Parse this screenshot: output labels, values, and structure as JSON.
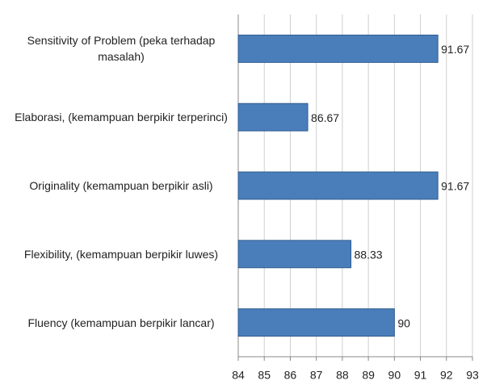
{
  "chart_data": {
    "type": "bar",
    "orientation": "horizontal",
    "categories": [
      "Sensitivity of Problem (peka terhadap masalah)",
      "Elaborasi, (kemampuan berpikir terperinci)",
      "Originality (kemampuan berpikir asli)",
      "Flexibility, (kemampuan berpikir luwes)",
      "Fluency (kemampuan berpikir lancar)"
    ],
    "values": [
      91.67,
      86.67,
      91.67,
      88.33,
      90
    ],
    "color": "#4a7ebb",
    "xlim": [
      84,
      93
    ],
    "xticks": [
      84,
      85,
      86,
      87,
      88,
      89,
      90,
      91,
      92,
      93
    ],
    "grid": true
  }
}
